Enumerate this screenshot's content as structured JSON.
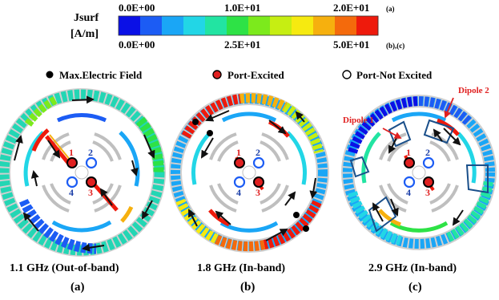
{
  "colorbar": {
    "quantity": "Jsurf",
    "unit": "[A/m]",
    "top_ticks": [
      "0.0E+00",
      "1.0E+01",
      "2.0E+01"
    ],
    "top_applies": "(a)",
    "bottom_ticks": [
      "0.0E+00",
      "2.5E+01",
      "5.0E+01"
    ],
    "bottom_applies": "(b),(c)",
    "colors": [
      "#0a10e6",
      "#1c5cf4",
      "#1aa6f6",
      "#22d6e6",
      "#22e4a2",
      "#2ee246",
      "#7cea1c",
      "#c6ee12",
      "#f6ea10",
      "#f6b00e",
      "#f46a0c",
      "#ee1a0c"
    ]
  },
  "legend": {
    "max_field": "Max.Electric Field",
    "port_excited": "Port-Excited",
    "port_not_excited": "Port-Not Excited"
  },
  "panels": [
    {
      "letter": "(a)",
      "caption": "1.1 GHz (Out-of-band)",
      "ports": [
        "1",
        "2",
        "3",
        "4"
      ],
      "excited": [
        "1",
        "3"
      ]
    },
    {
      "letter": "(b)",
      "caption": "1.8 GHz (In-band)",
      "ports": [
        "1",
        "2",
        "3",
        "4"
      ],
      "excited": [
        "1",
        "3"
      ]
    },
    {
      "letter": "(c)",
      "caption": "2.9 GHz (In-band)",
      "ports": [
        "1",
        "2",
        "3",
        "4"
      ],
      "excited": [
        "1",
        "3"
      ],
      "annotations": [
        "Dipole 1",
        "Dipole 2"
      ]
    }
  ],
  "colors": {
    "excited_port": "#e02020",
    "arrow": "#111111",
    "annotation": "#e02020",
    "dipole_outline": "#1a4f8a"
  }
}
